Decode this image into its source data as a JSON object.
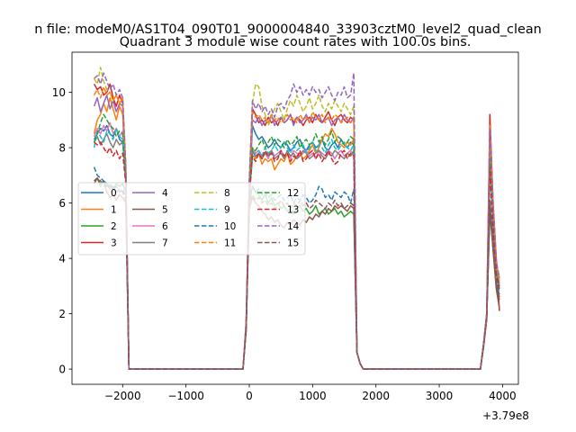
{
  "figure": {
    "suptitle": "n file: modeM0/AS1T04_090T01_9000004840_33903cztM0_level2_quad_clean",
    "title": "Quadrant 3 module wise count rates with 100.0s bins.",
    "x_offset_label": "+3.79e8"
  },
  "chart_data": {
    "type": "line",
    "title": "Quadrant 3 module wise count rates with 100.0s bins.",
    "xlabel": "",
    "ylabel": "",
    "x_offset": 379000000,
    "xlim": [
      -2800,
      4250
    ],
    "ylim": [
      -0.55,
      11.45
    ],
    "xticks": [
      -2000,
      -1000,
      0,
      1000,
      2000,
      3000,
      4000
    ],
    "xtick_labels": [
      "−2000",
      "−1000",
      "0",
      "1000",
      "2000",
      "3000",
      "4000"
    ],
    "yticks": [
      0,
      2,
      4,
      6,
      8,
      10
    ],
    "ytick_labels": [
      "0",
      "2",
      "4",
      "6",
      "8",
      "10"
    ],
    "grid": false,
    "legend_placement": "center-left",
    "segment1_x": [
      -2450,
      -2400,
      -2350,
      -2300,
      -2250,
      -2200,
      -2150,
      -2100,
      -2050,
      -2000,
      -1950,
      -1900
    ],
    "segment2_x": [
      -100,
      -50,
      0,
      50,
      100,
      150,
      200,
      250,
      300,
      350,
      400,
      450,
      500,
      550,
      600,
      650,
      700,
      750,
      800,
      850,
      900,
      950,
      1000,
      1050,
      1100,
      1150,
      1200,
      1250,
      1300,
      1350,
      1400,
      1450,
      1500,
      1550,
      1600,
      1650,
      1700,
      1750,
      1800
    ],
    "segment3_x": [
      3650,
      3700,
      3750,
      3800,
      3850,
      3900,
      3950
    ],
    "zero_gaps": [
      [
        -1900,
        -100
      ],
      [
        1800,
        3650
      ]
    ],
    "series": [
      {
        "name": "0",
        "style": "solid",
        "seg1": [
          8.3,
          8.5,
          8.7,
          8.6,
          8.8,
          8.5,
          8.4,
          8.7,
          8.3,
          8.2,
          7.0,
          0.0
        ],
        "seg2": [
          0.0,
          1.5,
          6.3,
          8.8,
          8.5,
          8.3,
          8.4,
          8.2,
          8.0,
          8.1,
          8.3,
          8.1,
          8.0,
          8.2,
          8.1,
          7.9,
          8.0,
          8.2,
          8.3,
          8.0,
          7.9,
          8.1,
          8.2,
          8.0,
          8.1,
          8.3,
          8.0,
          7.9,
          8.1,
          8.2,
          8.0,
          8.3,
          8.1,
          8.0,
          8.2,
          8.1,
          0.6,
          0.2,
          0.0
        ],
        "seg3": [
          0.0,
          0.9,
          1.9,
          6.0,
          4.3,
          3.0,
          2.5
        ]
      },
      {
        "name": "1",
        "style": "solid",
        "seg1": [
          8.5,
          9.0,
          9.2,
          9.6,
          9.3,
          9.8,
          9.4,
          9.0,
          9.5,
          9.2,
          6.8,
          0.0
        ],
        "seg2": [
          0.0,
          1.6,
          6.5,
          7.9,
          7.6,
          7.8,
          7.4,
          7.6,
          7.5,
          7.6,
          7.2,
          7.4,
          7.6,
          7.5,
          7.8,
          7.4,
          7.5,
          7.7,
          7.8,
          7.6,
          7.7,
          7.9,
          8.1,
          7.8,
          8.0,
          8.3,
          8.5,
          8.4,
          8.7,
          8.5,
          8.2,
          8.1,
          8.0,
          8.2,
          8.1,
          8.3,
          0.6,
          0.2,
          0.0
        ],
        "seg3": [
          0.0,
          0.8,
          1.8,
          7.6,
          5.5,
          3.8,
          3.3
        ]
      },
      {
        "name": "2",
        "style": "solid",
        "seg1": [
          6.8,
          6.9,
          6.6,
          6.8,
          6.7,
          6.6,
          6.5,
          6.7,
          6.6,
          6.7,
          6.4,
          0.0
        ],
        "seg2": [
          0.0,
          1.4,
          6.0,
          6.6,
          6.4,
          6.3,
          6.1,
          6.3,
          6.0,
          6.2,
          5.9,
          6.0,
          5.8,
          5.9,
          5.7,
          5.8,
          5.6,
          5.8,
          5.9,
          5.7,
          5.8,
          5.6,
          5.7,
          5.9,
          5.6,
          5.7,
          5.8,
          5.6,
          5.7,
          5.8,
          5.6,
          5.7,
          5.5,
          5.6,
          5.7,
          5.6,
          0.6,
          0.2,
          0.0
        ],
        "seg3": [
          0.0,
          0.9,
          1.9,
          5.6,
          4.4,
          3.0,
          2.6
        ]
      },
      {
        "name": "3",
        "style": "solid",
        "seg1": [
          10.3,
          10.1,
          10.2,
          9.9,
          10.0,
          10.3,
          9.8,
          9.5,
          9.9,
          9.6,
          7.2,
          0.0
        ],
        "seg2": [
          0.0,
          1.7,
          6.7,
          9.4,
          9.2,
          8.9,
          9.0,
          8.8,
          9.1,
          8.9,
          9.0,
          8.8,
          9.1,
          8.9,
          9.0,
          9.2,
          8.9,
          9.1,
          9.0,
          8.8,
          9.0,
          9.1,
          8.9,
          9.2,
          9.0,
          8.9,
          9.1,
          9.3,
          9.0,
          8.8,
          9.1,
          9.2,
          9.0,
          8.9,
          9.1,
          9.0,
          0.6,
          0.2,
          0.0
        ],
        "seg3": [
          0.0,
          0.9,
          2.0,
          9.2,
          6.0,
          4.0,
          2.1
        ]
      },
      {
        "name": "4",
        "style": "solid",
        "seg1": [
          9.5,
          9.8,
          9.3,
          9.6,
          9.9,
          9.4,
          9.7,
          9.3,
          9.6,
          9.5,
          7.0,
          0.0
        ],
        "seg2": [
          0.0,
          1.6,
          6.5,
          9.0,
          8.9,
          9.1,
          8.8,
          9.0,
          8.9,
          9.2,
          8.8,
          9.0,
          9.1,
          8.9,
          9.0,
          9.2,
          8.8,
          9.1,
          8.9,
          9.0,
          9.2,
          8.9,
          9.1,
          9.0,
          9.2,
          8.9,
          9.0,
          9.1,
          8.8,
          9.0,
          9.1,
          8.9,
          9.2,
          9.0,
          8.9,
          9.1,
          0.6,
          0.2,
          0.0
        ],
        "seg3": [
          0.0,
          0.9,
          2.0,
          8.0,
          5.6,
          3.6,
          3.1
        ]
      },
      {
        "name": "5",
        "style": "solid",
        "seg1": [
          6.7,
          6.9,
          6.7,
          6.8,
          6.4,
          6.2,
          6.3,
          6.1,
          6.3,
          6.2,
          6.0,
          0.0
        ],
        "seg2": [
          0.0,
          1.4,
          5.8,
          6.2,
          6.0,
          5.9,
          5.7,
          5.6,
          5.4,
          5.5,
          5.3,
          5.4,
          5.2,
          5.1,
          5.3,
          5.2,
          5.4,
          5.3,
          5.2,
          5.4,
          5.3,
          5.5,
          5.4,
          5.6,
          5.5,
          5.7,
          5.6,
          5.8,
          5.7,
          5.9,
          5.8,
          5.9,
          5.8,
          5.7,
          5.9,
          5.8,
          0.6,
          0.2,
          0.0
        ],
        "seg3": [
          0.0,
          0.8,
          1.8,
          5.8,
          4.3,
          2.9,
          2.2
        ]
      },
      {
        "name": "6",
        "style": "solid",
        "seg1": [
          8.4,
          8.7,
          8.5,
          8.8,
          8.6,
          8.9,
          8.5,
          8.7,
          8.4,
          8.6,
          6.9,
          0.0
        ],
        "seg2": [
          0.0,
          1.5,
          6.4,
          8.0,
          7.8,
          7.9,
          7.7,
          7.8,
          7.6,
          7.9,
          7.7,
          7.8,
          7.9,
          7.7,
          7.8,
          7.6,
          7.9,
          7.8,
          7.7,
          7.8,
          7.9,
          7.7,
          7.8,
          7.6,
          7.9,
          7.8,
          7.7,
          7.9,
          7.8,
          7.6,
          7.8,
          7.9,
          7.7,
          7.8,
          7.9,
          7.7,
          0.6,
          0.2,
          0.0
        ],
        "seg3": [
          0.0,
          0.9,
          1.9,
          8.6,
          5.8,
          3.7,
          3.2
        ]
      },
      {
        "name": "7",
        "style": "solid",
        "seg1": [
          8.2,
          8.4,
          8.1,
          8.3,
          8.5,
          8.2,
          8.0,
          8.3,
          8.1,
          8.2,
          6.8,
          0.0
        ],
        "seg2": [
          0.0,
          1.5,
          6.3,
          7.9,
          7.7,
          7.8,
          7.6,
          7.8,
          7.7,
          7.9,
          7.6,
          7.7,
          7.8,
          7.6,
          7.9,
          7.7,
          7.8,
          7.6,
          7.7,
          7.9,
          7.8,
          7.6,
          7.7,
          7.8,
          7.9,
          7.7,
          7.6,
          7.8,
          7.7,
          7.9,
          7.8,
          7.7,
          7.6,
          7.8,
          7.7,
          7.9,
          0.6,
          0.2,
          0.0
        ],
        "seg3": [
          0.0,
          0.9,
          1.9,
          7.9,
          5.4,
          3.5,
          3.0
        ]
      },
      {
        "name": "8",
        "style": "dashed",
        "seg1": [
          10.5,
          10.3,
          10.9,
          10.4,
          10.1,
          10.0,
          9.7,
          9.9,
          9.6,
          9.8,
          7.3,
          0.0
        ],
        "seg2": [
          0.0,
          1.7,
          6.8,
          9.6,
          10.3,
          10.2,
          9.5,
          9.2,
          8.8,
          9.1,
          9.4,
          9.6,
          9.3,
          9.0,
          9.4,
          9.7,
          9.5,
          9.9,
          9.6,
          9.3,
          9.5,
          9.8,
          9.4,
          9.6,
          9.9,
          9.5,
          9.3,
          9.6,
          9.4,
          9.7,
          9.5,
          9.3,
          9.6,
          9.4,
          9.2,
          9.5,
          0.6,
          0.2,
          0.0
        ],
        "seg3": [
          0.0,
          0.9,
          2.0,
          8.4,
          6.0,
          3.8,
          3.3
        ]
      },
      {
        "name": "9",
        "style": "dashed",
        "seg1": [
          8.0,
          8.6,
          8.4,
          8.2,
          8.6,
          8.5,
          8.3,
          8.7,
          8.4,
          8.3,
          6.8,
          0.0
        ],
        "seg2": [
          0.0,
          1.5,
          6.3,
          7.6,
          7.8,
          7.9,
          7.7,
          8.0,
          7.8,
          7.9,
          8.1,
          7.9,
          8.0,
          8.2,
          8.0,
          7.8,
          8.1,
          7.9,
          8.0,
          8.1,
          7.8,
          8.0,
          8.2,
          7.9,
          8.1,
          8.0,
          7.8,
          8.1,
          8.3,
          8.0,
          7.9,
          8.1,
          8.2,
          8.0,
          7.9,
          8.1,
          0.6,
          0.2,
          0.0
        ],
        "seg3": [
          0.0,
          0.9,
          1.9,
          7.0,
          5.0,
          3.3,
          2.8
        ]
      },
      {
        "name": "10",
        "style": "dashed",
        "seg1": [
          7.3,
          7.0,
          6.9,
          6.8,
          6.6,
          6.7,
          6.5,
          6.6,
          6.4,
          6.5,
          6.2,
          0.0
        ],
        "seg2": [
          0.0,
          1.5,
          6.2,
          6.6,
          6.4,
          6.5,
          6.3,
          6.4,
          6.2,
          6.3,
          6.1,
          6.2,
          6.3,
          6.1,
          6.2,
          6.3,
          6.0,
          6.2,
          6.1,
          6.3,
          6.2,
          6.0,
          6.1,
          6.3,
          6.6,
          6.5,
          6.2,
          6.3,
          6.1,
          6.4,
          6.3,
          6.2,
          6.4,
          6.3,
          6.0,
          6.5,
          0.6,
          0.2,
          0.0
        ],
        "seg3": [
          0.0,
          0.9,
          1.9,
          6.0,
          4.6,
          3.1,
          2.7
        ]
      },
      {
        "name": "11",
        "style": "dashed",
        "seg1": [
          9.9,
          10.1,
          9.8,
          10.2,
          9.9,
          10.0,
          9.7,
          9.9,
          9.6,
          9.8,
          7.1,
          0.0
        ],
        "seg2": [
          0.0,
          1.6,
          6.6,
          9.3,
          9.1,
          9.2,
          9.0,
          9.1,
          8.9,
          9.2,
          9.0,
          9.1,
          8.9,
          9.0,
          9.2,
          9.0,
          9.1,
          8.9,
          9.2,
          9.0,
          9.1,
          8.9,
          9.3,
          9.1,
          9.0,
          9.2,
          8.9,
          9.1,
          9.0,
          9.2,
          9.1,
          8.9,
          9.0,
          9.1,
          8.9,
          9.0,
          0.6,
          0.2,
          0.0
        ],
        "seg3": [
          0.0,
          0.9,
          2.0,
          8.8,
          5.9,
          3.8,
          3.2
        ]
      },
      {
        "name": "12",
        "style": "dashed",
        "seg1": [
          8.2,
          8.5,
          8.9,
          9.2,
          9.0,
          8.8,
          8.7,
          8.4,
          8.6,
          8.5,
          6.9,
          0.0
        ],
        "seg2": [
          0.0,
          1.5,
          6.4,
          8.0,
          7.9,
          8.1,
          8.3,
          8.0,
          8.2,
          8.4,
          8.1,
          8.3,
          8.2,
          8.0,
          8.3,
          8.1,
          8.2,
          8.4,
          8.0,
          8.2,
          8.3,
          8.1,
          8.2,
          8.5,
          8.2,
          8.4,
          8.1,
          8.3,
          8.6,
          8.2,
          8.4,
          8.3,
          8.1,
          8.2,
          8.4,
          8.3,
          0.6,
          0.2,
          0.0
        ],
        "seg3": [
          0.0,
          0.9,
          1.9,
          7.6,
          5.3,
          3.5,
          3.0
        ]
      },
      {
        "name": "13",
        "style": "dashed",
        "seg1": [
          8.2,
          8.1,
          8.2,
          8.0,
          7.8,
          8.0,
          7.7,
          7.9,
          7.6,
          7.8,
          6.7,
          0.0
        ],
        "seg2": [
          0.0,
          1.5,
          6.2,
          7.7,
          7.5,
          7.8,
          7.6,
          7.9,
          7.7,
          7.8,
          7.5,
          7.6,
          7.9,
          7.7,
          7.8,
          7.5,
          7.7,
          7.6,
          7.9,
          7.5,
          7.6,
          7.8,
          7.9,
          7.6,
          7.8,
          7.5,
          7.7,
          7.9,
          7.6,
          7.4,
          7.5,
          7.8,
          7.9,
          7.6,
          7.8,
          7.7,
          0.6,
          0.2,
          0.0
        ],
        "seg3": [
          0.0,
          0.9,
          1.9,
          7.3,
          5.1,
          3.4,
          2.9
        ]
      },
      {
        "name": "14",
        "style": "dashed",
        "seg1": [
          10.5,
          10.6,
          10.3,
          10.7,
          10.4,
          10.1,
          10.3,
          9.9,
          10.1,
          9.8,
          7.4,
          0.0
        ],
        "seg2": [
          0.0,
          1.7,
          6.9,
          9.7,
          9.4,
          9.6,
          9.3,
          9.5,
          9.2,
          9.4,
          9.1,
          9.5,
          9.6,
          9.4,
          9.7,
          9.9,
          10.3,
          10.0,
          10.2,
          9.9,
          10.1,
          9.9,
          10.2,
          10.0,
          10.1,
          9.8,
          10.0,
          10.2,
          9.9,
          9.7,
          10.0,
          9.9,
          10.2,
          9.8,
          9.9,
          10.7,
          0.6,
          0.2,
          0.0
        ],
        "seg3": [
          0.0,
          0.9,
          2.0,
          8.7,
          6.0,
          3.9,
          3.3
        ]
      },
      {
        "name": "15",
        "style": "dashed",
        "seg1": [
          6.8,
          6.9,
          6.8,
          6.6,
          6.7,
          6.5,
          6.6,
          6.4,
          6.5,
          6.4,
          6.1,
          0.0
        ],
        "seg2": [
          0.0,
          1.4,
          6.0,
          6.3,
          6.1,
          6.2,
          6.0,
          6.1,
          5.9,
          6.0,
          5.8,
          5.9,
          6.1,
          5.9,
          6.0,
          5.8,
          6.0,
          5.9,
          6.1,
          5.9,
          6.0,
          5.8,
          5.9,
          6.1,
          6.0,
          5.9,
          5.8,
          6.0,
          5.9,
          6.1,
          5.9,
          6.0,
          5.8,
          5.9,
          6.0,
          5.9,
          0.6,
          0.2,
          0.0
        ],
        "seg3": [
          0.0,
          0.8,
          1.8,
          6.1,
          4.5,
          3.0,
          2.6
        ]
      }
    ]
  },
  "colors": {
    "palette": [
      "#1f77b4",
      "#ff7f0e",
      "#2ca02c",
      "#d62728",
      "#9467bd",
      "#8c564b",
      "#e377c2",
      "#7f7f7f",
      "#bcbd22",
      "#17becf",
      "#1f77b4",
      "#ff7f0e",
      "#2ca02c",
      "#d62728",
      "#9467bd",
      "#8c564b"
    ],
    "axes": "#000000",
    "background": "#ffffff"
  }
}
